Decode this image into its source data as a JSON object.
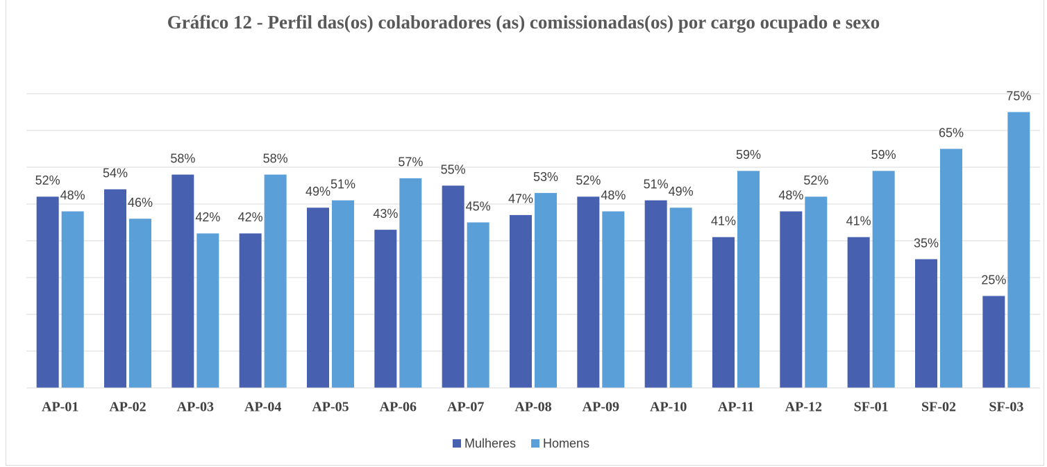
{
  "chart_data": {
    "type": "bar",
    "title": "Gráfico 12 - Perfil das(os) colaboradores (as) comissionadas(os) por cargo ocupado e sexo",
    "categories": [
      "AP-01",
      "AP-02",
      "AP-03",
      "AP-04",
      "AP-05",
      "AP-06",
      "AP-07",
      "AP-08",
      "AP-09",
      "AP-10",
      "AP-11",
      "AP-12",
      "SF-01",
      "SF-02",
      "SF-03"
    ],
    "series": [
      {
        "name": "Mulheres",
        "color": "#4760b0",
        "values": [
          52,
          54,
          58,
          42,
          49,
          43,
          55,
          47,
          52,
          51,
          41,
          48,
          41,
          35,
          25
        ],
        "value_labels": [
          "52%",
          "54%",
          "58%",
          "42%",
          "49%",
          "43%",
          "55%",
          "47%",
          "52%",
          "51%",
          "41%",
          "48%",
          "41%",
          "35%",
          "25%"
        ]
      },
      {
        "name": "Homens",
        "color": "#5b9fd9",
        "values": [
          48,
          46,
          42,
          58,
          51,
          57,
          45,
          53,
          48,
          49,
          59,
          52,
          59,
          65,
          75
        ],
        "value_labels": [
          "48%",
          "46%",
          "42%",
          "58%",
          "51%",
          "57%",
          "45%",
          "53%",
          "48%",
          "49%",
          "59%",
          "52%",
          "59%",
          "65%",
          "75%"
        ]
      }
    ],
    "ylim": [
      0,
      80
    ],
    "yticks": [
      0,
      10,
      20,
      30,
      40,
      50,
      60,
      70,
      80
    ],
    "grid": true,
    "legend": "bottom"
  }
}
